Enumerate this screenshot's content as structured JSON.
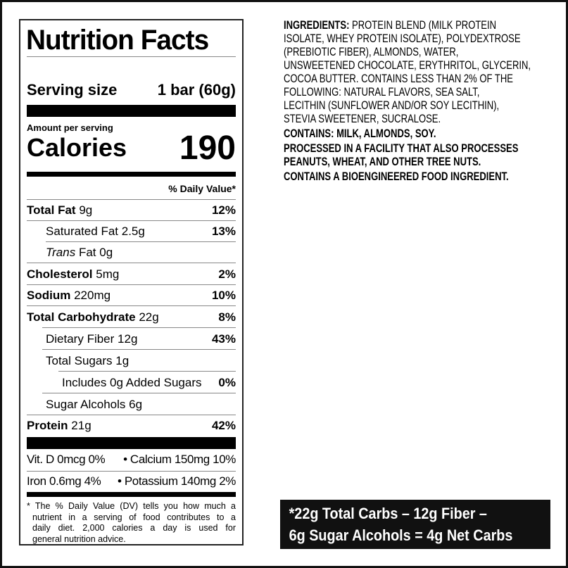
{
  "label": {
    "title": "Nutrition Facts",
    "serving_size_label": "Serving size",
    "serving_size_value": "1 bar (60g)",
    "amount_per_serving": "Amount per serving",
    "calories_label": "Calories",
    "calories_value": "190",
    "daily_value_header": "% Daily Value*",
    "rows": [
      {
        "name": "Total Fat",
        "amount": "9g",
        "dv": "12%"
      },
      {
        "name": "Saturated Fat",
        "amount": "2.5g",
        "dv": "13%"
      },
      {
        "name": "Trans",
        "name_rest": "Fat",
        "amount": "0g",
        "dv": ""
      },
      {
        "name": "Cholesterol",
        "amount": "5mg",
        "dv": "2%"
      },
      {
        "name": "Sodium",
        "amount": "220mg",
        "dv": "10%"
      },
      {
        "name": "Total Carbohydrate",
        "amount": "22g",
        "dv": "8%"
      },
      {
        "name": "Dietary Fiber",
        "amount": "12g",
        "dv": "43%"
      },
      {
        "name": "Total Sugars",
        "amount": "1g",
        "dv": ""
      },
      {
        "name": "Includes 0g Added Sugars",
        "amount": "",
        "dv": "0%"
      },
      {
        "name": "Sugar Alcohols",
        "amount": "6g",
        "dv": ""
      },
      {
        "name": "Protein",
        "amount": "21g",
        "dv": "42%"
      }
    ],
    "vitamins": [
      {
        "left": "Vit. D 0mcg 0%",
        "right": "•   Calcium 150mg 10%"
      },
      {
        "left": "Iron 0.6mg 4%",
        "right": "•  Potassium 140mg 2%"
      }
    ],
    "footnote_lines": [
      "* The % Daily Value (DV) tells you how much a",
      "nutrient in a serving of food contributes to a",
      "daily diet. 2,000 calories a day is used for",
      "general nutrition advice."
    ]
  },
  "ingredients": {
    "heading": "INGREDIENTS:",
    "lines": [
      "PROTEIN BLEND (MILK PROTEIN",
      "ISOLATE, WHEY PROTEIN ISOLATE), POLYDEXTROSE",
      "(PREBIOTIC FIBER), ALMONDS, WATER,",
      "UNSWEETENED CHOCOLATE, ERYTHRITOL, GLYCERIN,",
      "COCOA BUTTER. CONTAINS LESS THAN 2% OF THE",
      "FOLLOWING: NATURAL FLAVORS, SEA SALT,",
      "LECITHIN (SUNFLOWER AND/OR SOY LECITHIN),",
      "STEVIA SWEETENER, SUCRALOSE."
    ],
    "contains": "CONTAINS: MILK, ALMONDS, SOY.",
    "facility_lines": [
      "PROCESSED IN A FACILITY THAT ALSO PROCESSES",
      "PEANUTS, WHEAT, AND OTHER TREE NUTS."
    ],
    "bioengineered": "CONTAINS A BIOENGINEERED FOOD INGREDIENT."
  },
  "net_carbs": {
    "lines": [
      "*22g Total Carbs – 12g Fiber –",
      "6g Sugar Alcohols = 4g Net Carbs"
    ]
  }
}
